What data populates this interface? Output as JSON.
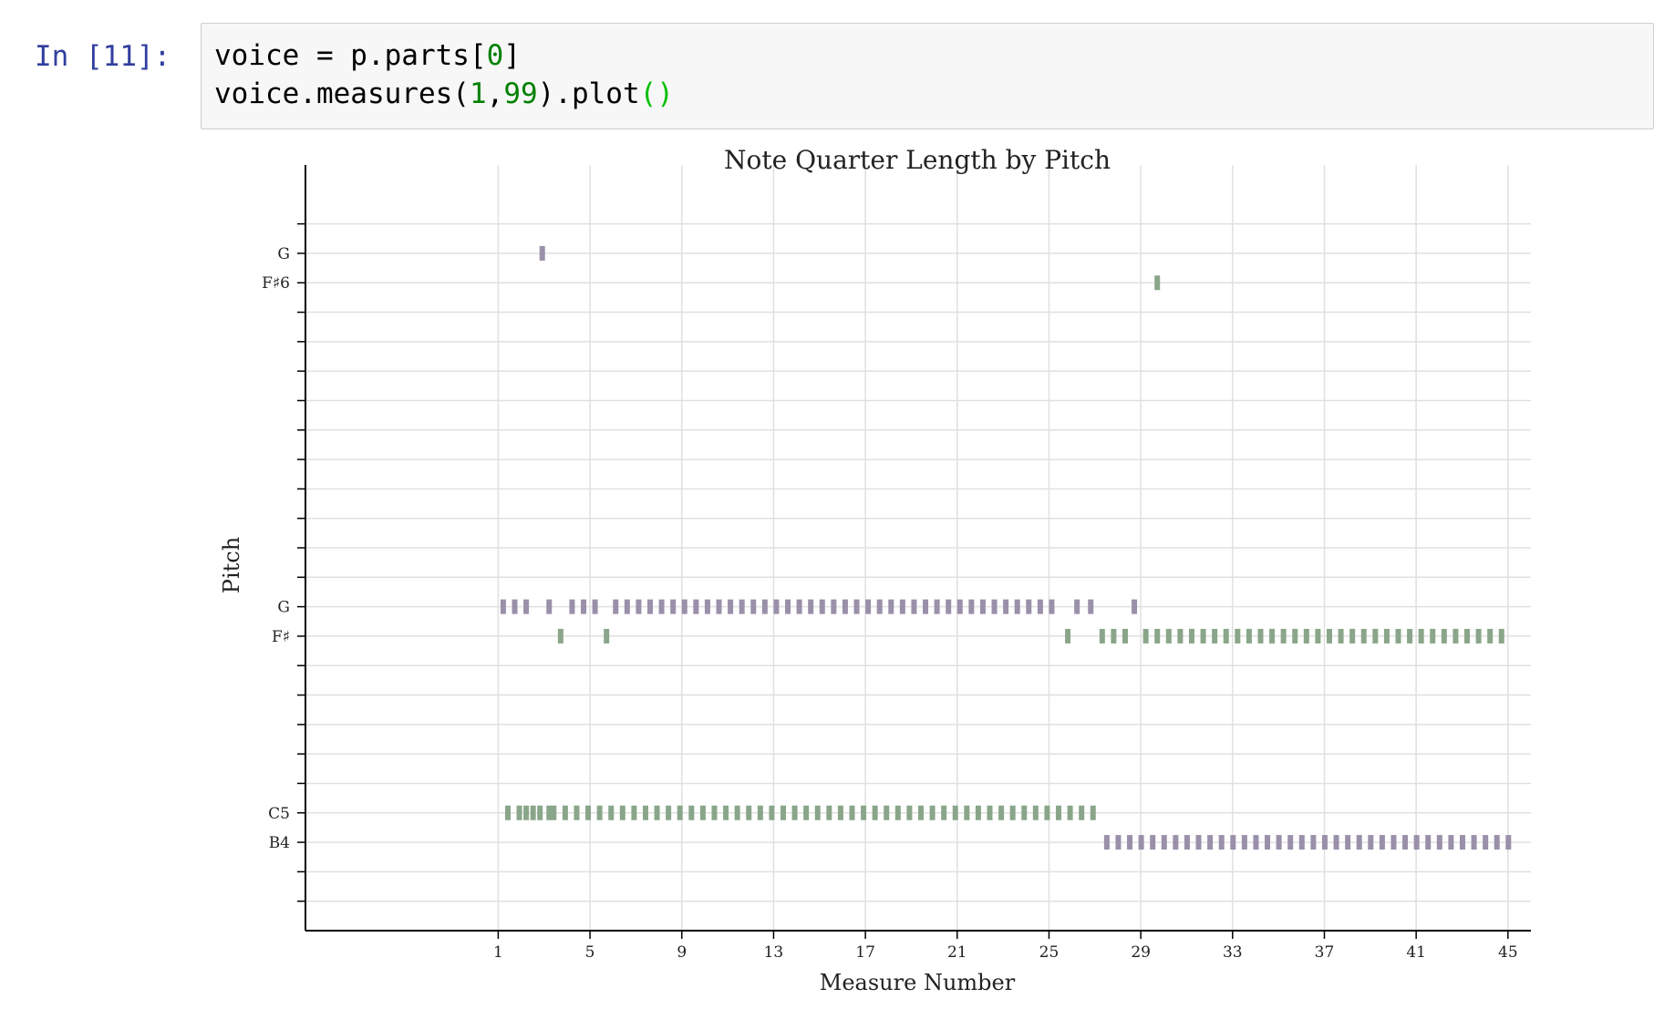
{
  "cell": {
    "prompt": "In [11]:",
    "line1": {
      "pre": "voice = p.parts[",
      "num": "0",
      "post": "]"
    },
    "line2": {
      "pre": "voice.measures(",
      "num1": "1",
      "comma": ",",
      "num2": "99",
      "mid": ").plot",
      "parens": "()"
    }
  },
  "chart_data": {
    "type": "scatter",
    "title": "Note Quarter Length by Pitch",
    "xlabel": "Measure Number",
    "ylabel": "Pitch",
    "xlim": [
      -7.4,
      46
    ],
    "ylim": [
      68,
      94
    ],
    "x_ticks": [
      1,
      5,
      9,
      13,
      17,
      21,
      25,
      29,
      33,
      37,
      41,
      45
    ],
    "y_ticks": [
      69,
      70,
      71,
      72,
      73,
      74,
      75,
      76,
      77,
      78,
      79,
      80,
      81,
      82,
      83,
      84,
      85,
      86,
      87,
      88,
      89,
      90,
      91,
      92
    ],
    "y_tick_labels": {
      "71": "B4",
      "72": "C5",
      "78": "F♯",
      "79": "G",
      "90": "F♯6",
      "91": "G"
    },
    "grid": true,
    "colors": {
      "G": "#9a90aa",
      "F♯": "#8aa68a",
      "C5": "#8aa68a",
      "B4": "#9a90aa",
      "G6": "#9a90aa",
      "F♯6": "#8aa68a"
    },
    "series": [
      {
        "name": "G",
        "pitch": 91,
        "x": [
          2.8
        ],
        "quarter_length": [
          0.25
        ]
      },
      {
        "name": "F♯6",
        "pitch": 90,
        "x": [
          29.6
        ],
        "quarter_length": [
          0.25
        ]
      },
      {
        "name": "G",
        "pitch": 79,
        "x": [
          1.1,
          1.6,
          2.1,
          3.1,
          4.1,
          4.6,
          5.1,
          6.0,
          6.5,
          7.0,
          7.5,
          8.0,
          8.5,
          9.0,
          9.5,
          10.0,
          10.5,
          11.0,
          11.5,
          12.0,
          12.5,
          13.0,
          13.5,
          14.0,
          14.5,
          15.0,
          15.5,
          16.0,
          16.5,
          17.0,
          17.5,
          18.0,
          18.5,
          19.0,
          19.5,
          20.0,
          20.5,
          21.0,
          21.5,
          22.0,
          22.5,
          23.0,
          23.5,
          24.0,
          24.5,
          25.0,
          26.1,
          26.7,
          28.6
        ],
        "quarter_length": [
          0.25
        ]
      },
      {
        "name": "F♯",
        "pitch": 78,
        "x": [
          3.6,
          5.6,
          25.7,
          27.2,
          27.7,
          28.2,
          29.1,
          29.6,
          30.1,
          30.6,
          31.1,
          31.6,
          32.1,
          32.6,
          33.1,
          33.6,
          34.1,
          34.6,
          35.1,
          35.6,
          36.1,
          36.6,
          37.1,
          37.6,
          38.1,
          38.6,
          39.1,
          39.6,
          40.1,
          40.6,
          41.1,
          41.6,
          42.1,
          42.6,
          43.1,
          43.6,
          44.1,
          44.6
        ],
        "quarter_length": [
          0.25
        ]
      },
      {
        "name": "C5",
        "pitch": 72,
        "x": [
          1.3,
          1.8,
          2.1,
          2.4,
          2.7,
          3.1,
          3.3,
          3.8,
          4.3,
          4.8,
          5.3,
          5.8,
          6.3,
          6.8,
          7.3,
          7.8,
          8.3,
          8.8,
          9.3,
          9.8,
          10.3,
          10.8,
          11.3,
          11.8,
          12.3,
          12.8,
          13.3,
          13.8,
          14.3,
          14.8,
          15.3,
          15.8,
          16.3,
          16.8,
          17.3,
          17.8,
          18.3,
          18.8,
          19.3,
          19.8,
          20.3,
          20.8,
          21.3,
          21.8,
          22.3,
          22.8,
          23.3,
          23.8,
          24.3,
          24.8,
          25.3,
          25.8,
          26.3,
          26.8
        ],
        "quarter_length": [
          0.25
        ]
      },
      {
        "name": "B4",
        "pitch": 71,
        "x": [
          27.4,
          27.9,
          28.4,
          28.9,
          29.4,
          29.9,
          30.4,
          30.9,
          31.4,
          31.9,
          32.4,
          32.9,
          33.4,
          33.9,
          34.4,
          34.9,
          35.4,
          35.9,
          36.4,
          36.9,
          37.4,
          37.9,
          38.4,
          38.9,
          39.4,
          39.9,
          40.4,
          40.9,
          41.4,
          41.9,
          42.4,
          42.9,
          43.4,
          43.9,
          44.4,
          44.9
        ],
        "quarter_length": [
          0.25
        ]
      }
    ]
  }
}
